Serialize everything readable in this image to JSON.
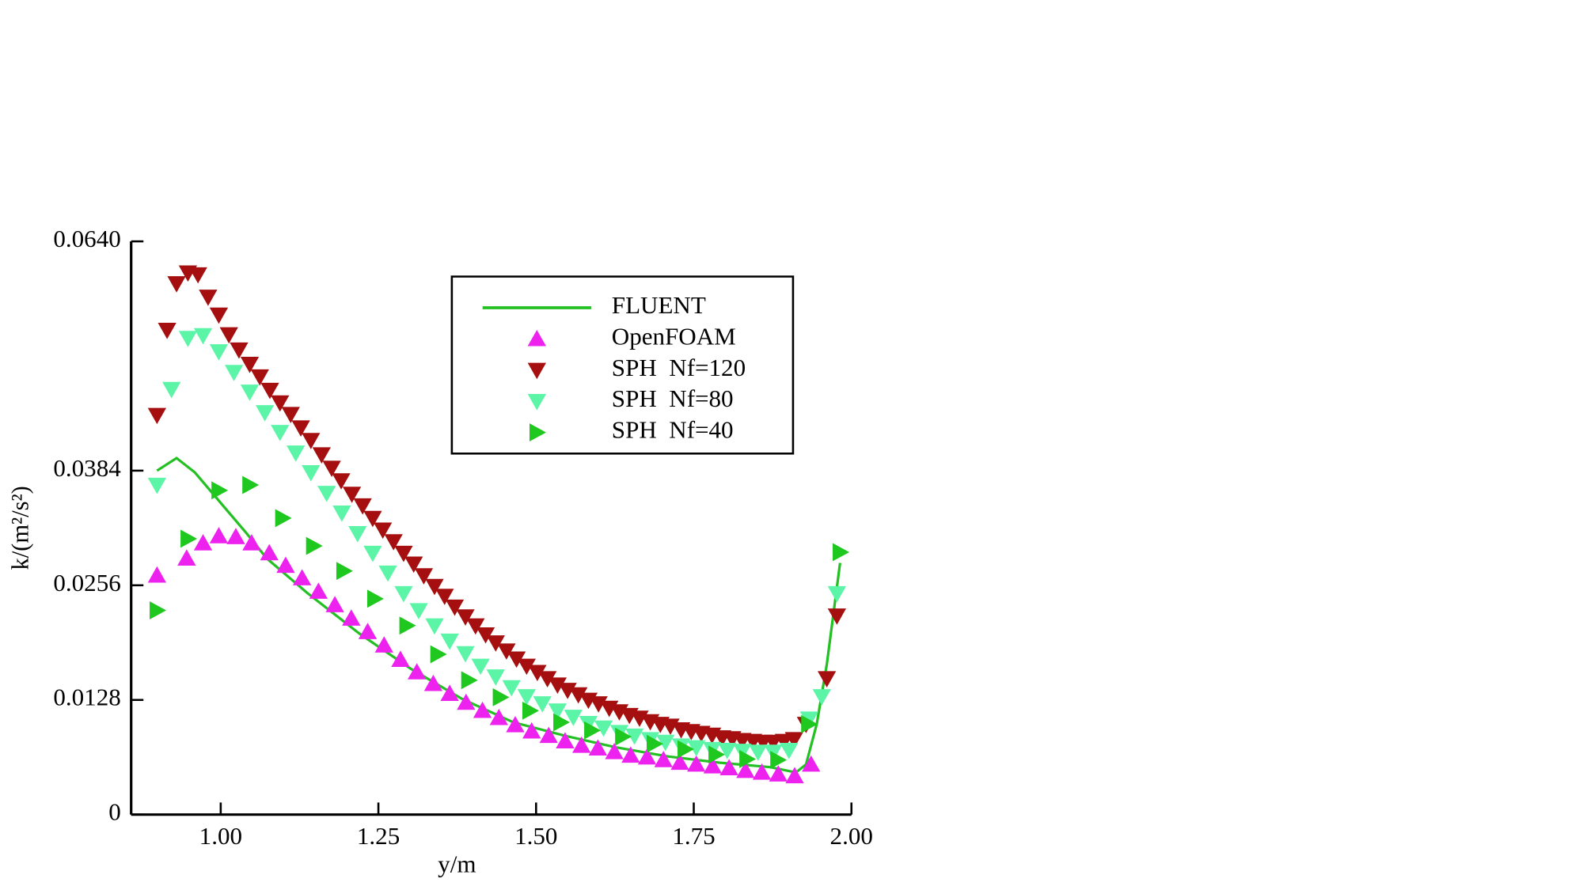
{
  "chart_data": {
    "type": "scatter",
    "x_label": "y/m",
    "y_label": "k/(m²/s²)",
    "xlim": [
      0.858,
      2.0
    ],
    "ylim": [
      0,
      0.064
    ],
    "xticks": [
      {
        "value": 1,
        "label": "1.00"
      },
      1.25,
      {
        "value": 1.5,
        "label": "1.50"
      },
      1.75,
      {
        "value": 2,
        "label": "2.00"
      }
    ],
    "yticks": [
      0,
      0.0128,
      0.0256,
      0.0384,
      {
        "value": 0.064,
        "label": "0.0640"
      }
    ],
    "legend": "upper center",
    "series": [
      {
        "name": "FLUENT",
        "color": "#22c022",
        "marker": "line",
        "x": [
          0.899,
          0.93,
          0.959,
          1.0,
          1.041,
          1.073,
          1.138,
          1.22,
          1.301,
          1.383,
          1.464,
          1.546,
          1.627,
          1.708,
          1.79,
          1.871,
          1.912,
          1.928,
          1.945,
          1.961,
          1.982
        ],
        "values": [
          0.0384,
          0.0398,
          0.0382,
          0.0348,
          0.0314,
          0.0286,
          0.0247,
          0.0202,
          0.0163,
          0.0129,
          0.0103,
          0.0088,
          0.0075,
          0.0065,
          0.0058,
          0.0053,
          0.0047,
          0.0056,
          0.0101,
          0.0168,
          0.0281
        ]
      },
      {
        "name": "OpenFOAM",
        "color": "#ee22ee",
        "marker": "triangle-up",
        "x": [
          0.899,
          0.946,
          0.972,
          0.997,
          1.024,
          1.049,
          1.077,
          1.103,
          1.129,
          1.155,
          1.181,
          1.207,
          1.233,
          1.259,
          1.285,
          1.311,
          1.337,
          1.363,
          1.389,
          1.415,
          1.441,
          1.467,
          1.493,
          1.52,
          1.546,
          1.572,
          1.598,
          1.624,
          1.65,
          1.676,
          1.702,
          1.728,
          1.754,
          1.78,
          1.806,
          1.832,
          1.858,
          1.884,
          1.91,
          1.936
        ],
        "values": [
          0.0267,
          0.0286,
          0.0303,
          0.0311,
          0.031,
          0.0303,
          0.0292,
          0.0278,
          0.0264,
          0.0249,
          0.0234,
          0.0219,
          0.0204,
          0.0189,
          0.0173,
          0.0159,
          0.0146,
          0.0135,
          0.0125,
          0.0116,
          0.0108,
          0.01,
          0.0093,
          0.0088,
          0.0082,
          0.0077,
          0.0074,
          0.007,
          0.0066,
          0.0064,
          0.0061,
          0.0058,
          0.0056,
          0.0054,
          0.0052,
          0.0049,
          0.0047,
          0.0045,
          0.0043,
          0.0056
        ]
      },
      {
        "name": "SPH  Nf=120",
        "color": "#a50f0f",
        "marker": "triangle-down",
        "x": [
          0.899,
          0.915,
          0.93,
          0.948,
          0.964,
          0.98,
          0.997,
          1.013,
          1.029,
          1.046,
          1.062,
          1.078,
          1.094,
          1.111,
          1.127,
          1.143,
          1.16,
          1.176,
          1.191,
          1.208,
          1.225,
          1.241,
          1.257,
          1.274,
          1.29,
          1.306,
          1.322,
          1.339,
          1.355,
          1.371,
          1.388,
          1.404,
          1.42,
          1.436,
          1.453,
          1.469,
          1.485,
          1.502,
          1.518,
          1.534,
          1.55,
          1.567,
          1.583,
          1.599,
          1.616,
          1.632,
          1.648,
          1.664,
          1.681,
          1.697,
          1.713,
          1.73,
          1.746,
          1.762,
          1.779,
          1.795,
          1.811,
          1.827,
          1.844,
          1.86,
          1.876,
          1.893,
          1.909,
          1.928,
          1.961,
          1.977
        ],
        "values": [
          0.0446,
          0.0541,
          0.0593,
          0.0605,
          0.0603,
          0.0578,
          0.0558,
          0.0536,
          0.0519,
          0.0503,
          0.0489,
          0.0474,
          0.046,
          0.0447,
          0.0432,
          0.0418,
          0.0402,
          0.0387,
          0.0373,
          0.0358,
          0.0345,
          0.0331,
          0.0318,
          0.0305,
          0.0292,
          0.028,
          0.0267,
          0.0255,
          0.0244,
          0.0232,
          0.0221,
          0.0211,
          0.0201,
          0.0192,
          0.0183,
          0.0174,
          0.0166,
          0.0159,
          0.0152,
          0.0145,
          0.0139,
          0.0134,
          0.0128,
          0.0124,
          0.0119,
          0.0115,
          0.0111,
          0.0108,
          0.0104,
          0.0101,
          0.0099,
          0.0095,
          0.0093,
          0.0091,
          0.0089,
          0.0086,
          0.0085,
          0.0083,
          0.0082,
          0.0081,
          0.0081,
          0.0082,
          0.0084,
          0.0101,
          0.0152,
          0.0222
        ]
      },
      {
        "name": "SPH  Nf=80",
        "color": "#5cf5a8",
        "marker": "triangle-down",
        "x": [
          0.899,
          0.922,
          0.948,
          0.972,
          0.997,
          1.021,
          1.046,
          1.07,
          1.094,
          1.119,
          1.143,
          1.168,
          1.192,
          1.217,
          1.241,
          1.265,
          1.29,
          1.314,
          1.339,
          1.363,
          1.388,
          1.412,
          1.436,
          1.461,
          1.485,
          1.51,
          1.534,
          1.559,
          1.583,
          1.607,
          1.632,
          1.656,
          1.681,
          1.705,
          1.73,
          1.754,
          1.779,
          1.803,
          1.827,
          1.852,
          1.876,
          1.901,
          1.933,
          1.953,
          1.977
        ],
        "values": [
          0.0368,
          0.0475,
          0.0532,
          0.0535,
          0.0517,
          0.0494,
          0.0472,
          0.0449,
          0.0427,
          0.0404,
          0.0382,
          0.0359,
          0.0337,
          0.0314,
          0.0292,
          0.027,
          0.0247,
          0.0228,
          0.0211,
          0.0194,
          0.018,
          0.0166,
          0.0154,
          0.0142,
          0.0132,
          0.0124,
          0.0116,
          0.0109,
          0.0102,
          0.0097,
          0.0092,
          0.0088,
          0.0084,
          0.0081,
          0.0077,
          0.0075,
          0.0073,
          0.0072,
          0.0071,
          0.007,
          0.007,
          0.0072,
          0.0107,
          0.0132,
          0.0247
        ]
      },
      {
        "name": "SPH  Nf=40",
        "color": "#1ec81e",
        "marker": "triangle-right",
        "x": [
          0.899,
          0.948,
          0.997,
          1.046,
          1.098,
          1.147,
          1.195,
          1.244,
          1.295,
          1.344,
          1.393,
          1.443,
          1.49,
          1.539,
          1.588,
          1.637,
          1.687,
          1.736,
          1.785,
          1.834,
          1.883,
          1.932,
          1.982
        ],
        "values": [
          0.0228,
          0.0308,
          0.0362,
          0.0368,
          0.0331,
          0.03,
          0.0272,
          0.0241,
          0.0211,
          0.0179,
          0.015,
          0.0131,
          0.0116,
          0.0103,
          0.0094,
          0.0087,
          0.0079,
          0.0073,
          0.0067,
          0.0062,
          0.0061,
          0.0101,
          0.0293
        ]
      }
    ]
  }
}
